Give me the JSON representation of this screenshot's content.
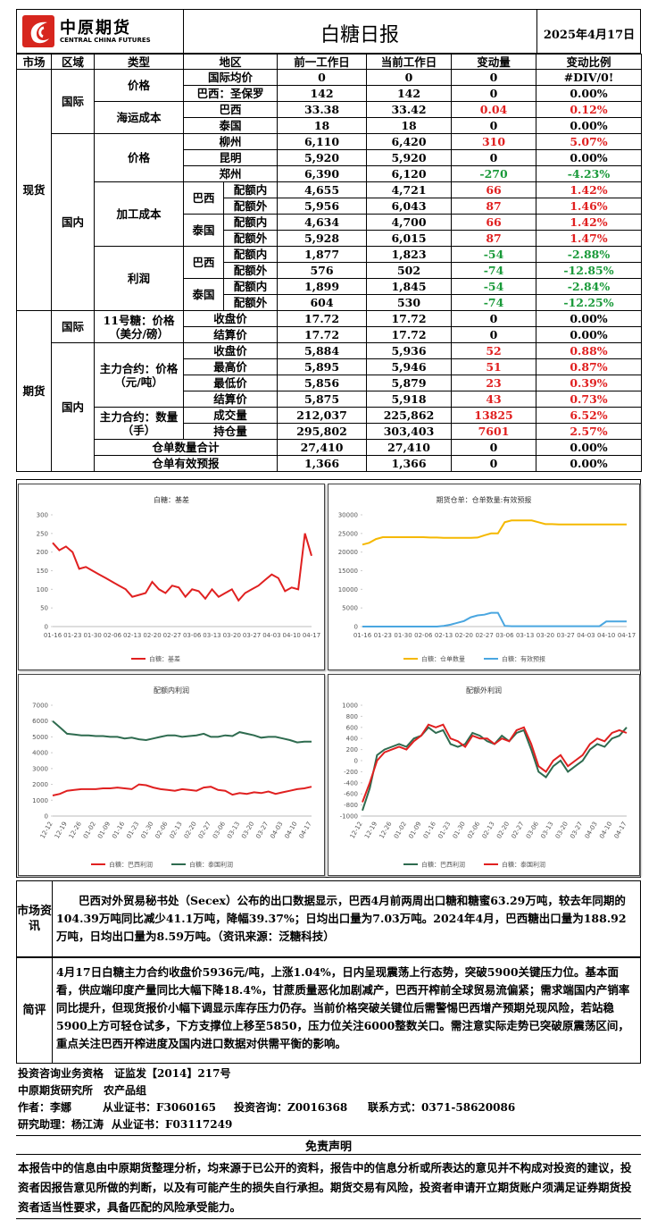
{
  "header": {
    "logo_cn": "中原期货",
    "logo_en": "CENTRAL CHINA FUTURES",
    "title": "白糖日报",
    "date": "2025年4月17日"
  },
  "table": {
    "header": [
      "市场",
      "区域",
      "类型",
      "地区",
      "前一工作日",
      "当前工作日",
      "变动量",
      "变动比例"
    ],
    "markets": [
      "现货",
      "期货"
    ],
    "regions": [
      "国际",
      "国内",
      "国际",
      "国内"
    ],
    "types": [
      "价格",
      "海运成本",
      "价格",
      "加工成本",
      "利润",
      "11号糖：价格（美分/磅）",
      "主力合约：价格（元/吨）",
      "主力合约：数量（手）"
    ],
    "subs": [
      "巴西",
      "泰国",
      "巴西",
      "泰国"
    ],
    "rows": [
      [
        "国际均价",
        "0",
        "0",
        "0",
        "#DIV/0!"
      ],
      [
        "巴西：圣保罗",
        "142",
        "142",
        "0",
        "0.00%"
      ],
      [
        "巴西",
        "33.38",
        "33.42",
        "0.04",
        "0.12%"
      ],
      [
        "泰国",
        "18",
        "18",
        "0",
        "0.00%"
      ],
      [
        "柳州",
        "6,110",
        "6,420",
        "310",
        "5.07%"
      ],
      [
        "昆明",
        "5,920",
        "5,920",
        "0",
        "0.00%"
      ],
      [
        "郑州",
        "6,390",
        "6,120",
        "-270",
        "-4.23%"
      ],
      [
        "配额内",
        "4,655",
        "4,721",
        "66",
        "1.42%"
      ],
      [
        "配额外",
        "5,956",
        "6,043",
        "87",
        "1.46%"
      ],
      [
        "配额内",
        "4,634",
        "4,700",
        "66",
        "1.42%"
      ],
      [
        "配额外",
        "5,928",
        "6,015",
        "87",
        "1.47%"
      ],
      [
        "配额内",
        "1,877",
        "1,823",
        "-54",
        "-2.88%"
      ],
      [
        "配额外",
        "576",
        "502",
        "-74",
        "-12.85%"
      ],
      [
        "配额内",
        "1,899",
        "1,845",
        "-54",
        "-2.84%"
      ],
      [
        "配额外",
        "604",
        "530",
        "-74",
        "-12.25%"
      ],
      [
        "收盘价",
        "17.72",
        "17.72",
        "0",
        "0.00%"
      ],
      [
        "结算价",
        "17.72",
        "17.72",
        "0",
        "0.00%"
      ],
      [
        "收盘价",
        "5,884",
        "5,936",
        "52",
        "0.88%"
      ],
      [
        "最高价",
        "5,895",
        "5,946",
        "51",
        "0.87%"
      ],
      [
        "最低价",
        "5,856",
        "5,879",
        "23",
        "0.39%"
      ],
      [
        "结算价",
        "5,875",
        "5,918",
        "43",
        "0.73%"
      ],
      [
        "成交量",
        "212,037",
        "225,862",
        "13825",
        "6.52%"
      ],
      [
        "持仓量",
        "295,802",
        "303,403",
        "7601",
        "2.57%"
      ],
      [
        "仓单数量合计",
        "27,410",
        "27,410",
        "0",
        "0.00%"
      ],
      [
        "仓单有效预报",
        "1,366",
        "1,366",
        "0",
        "0.00%"
      ]
    ]
  },
  "chart_data": [
    {
      "type": "line",
      "title": "白糖：基差",
      "categories": [
        "01-16",
        null,
        null,
        "01-23",
        null,
        null,
        "01-30",
        null,
        null,
        "02-06",
        null,
        null,
        "02-13",
        null,
        null,
        "02-20",
        null,
        null,
        "02-27",
        null,
        null,
        "03-06",
        null,
        null,
        "03-13",
        null,
        null,
        "03-20",
        null,
        null,
        "03-27",
        null,
        null,
        "04-03",
        null,
        null,
        "04-10",
        null,
        null,
        "04-17"
      ],
      "series": [
        {
          "name": "白糖：基差",
          "color": "#e02020",
          "values": [
            225,
            205,
            215,
            200,
            155,
            160,
            150,
            140,
            130,
            120,
            110,
            100,
            80,
            85,
            90,
            120,
            100,
            90,
            110,
            105,
            80,
            100,
            95,
            75,
            100,
            80,
            90,
            100,
            70,
            90,
            100,
            110,
            125,
            140,
            130,
            95,
            105,
            100,
            250,
            190
          ]
        }
      ],
      "ylim": [
        0,
        300
      ],
      "yticks": [
        0,
        50,
        100,
        150,
        200,
        250,
        300
      ],
      "grid": false
    },
    {
      "type": "line",
      "title": "期货仓单：仓单数量:有效预报",
      "categories": [
        "01-16",
        null,
        null,
        "01-23",
        null,
        null,
        "01-30",
        null,
        null,
        "02-06",
        null,
        null,
        "02-13",
        null,
        null,
        "02-20",
        null,
        null,
        "02-27",
        null,
        null,
        "03-06",
        null,
        null,
        "03-13",
        null,
        null,
        "03-20",
        null,
        null,
        "03-27",
        null,
        null,
        "04-03",
        null,
        null,
        "04-10",
        null,
        null,
        "04-17"
      ],
      "series": [
        {
          "name": "白糖：仓单数量",
          "color": "#f5b800",
          "values": [
            22000,
            22500,
            23500,
            24000,
            24000,
            24000,
            24000,
            24000,
            24000,
            24000,
            23900,
            23900,
            23800,
            23800,
            23800,
            23800,
            23800,
            23900,
            24500,
            25000,
            25000,
            28000,
            28500,
            28500,
            28500,
            28500,
            28000,
            27500,
            27500,
            27400,
            27400,
            27400,
            27410,
            27410,
            27410,
            27410,
            27410,
            27410,
            27410,
            27410
          ]
        },
        {
          "name": "白糖：有效预报",
          "color": "#4aa6e0",
          "values": [
            0,
            0,
            0,
            0,
            0,
            0,
            0,
            0,
            0,
            0,
            0,
            0,
            200,
            500,
            1000,
            1500,
            2500,
            3000,
            3200,
            3700,
            3700,
            200,
            100,
            100,
            100,
            100,
            100,
            100,
            100,
            100,
            100,
            100,
            100,
            100,
            100,
            100,
            1366,
            1366,
            1366,
            1366
          ]
        }
      ],
      "ylim": [
        0,
        30000
      ],
      "yticks": [
        0,
        5000,
        10000,
        15000,
        20000,
        25000,
        30000
      ],
      "grid": false
    },
    {
      "type": "line",
      "title": "配额内利润",
      "categories": [
        "12-12",
        null,
        "12-19",
        null,
        "12-26",
        null,
        "01-02",
        null,
        "01-09",
        null,
        "01-16",
        null,
        "01-23",
        null,
        "01-30",
        null,
        "02-06",
        null,
        "02-13",
        null,
        "02-20",
        null,
        "02-27",
        null,
        "03-06",
        null,
        "03-13",
        null,
        "03-20",
        null,
        "03-27",
        null,
        "04-03",
        null,
        "04-10",
        null,
        "04-17"
      ],
      "series": [
        {
          "name": "白糖：巴西利润",
          "color": "#e02020",
          "values": [
            1300,
            1400,
            1600,
            1650,
            1700,
            1700,
            1700,
            1750,
            1750,
            1800,
            1750,
            1700,
            2000,
            1950,
            1800,
            1700,
            1650,
            1600,
            1700,
            1650,
            1600,
            1800,
            1850,
            1650,
            1600,
            1350,
            1450,
            1400,
            1500,
            1450,
            1550,
            1400,
            1500,
            1600,
            1700,
            1750,
            1850
          ]
        },
        {
          "name": "白糖：泰国利润",
          "color": "#2e6b4f",
          "values": [
            6000,
            5600,
            5200,
            5150,
            5100,
            5100,
            5050,
            5050,
            5000,
            5000,
            4900,
            4950,
            4850,
            4800,
            4900,
            5000,
            5100,
            5100,
            5000,
            5050,
            5100,
            5200,
            5000,
            5000,
            5100,
            5050,
            5300,
            5200,
            5100,
            4950,
            5000,
            5000,
            4900,
            4800,
            4650,
            4700,
            4700
          ]
        }
      ],
      "ylim": [
        0,
        7000
      ],
      "yticks": [
        0,
        1000,
        2000,
        3000,
        4000,
        5000,
        6000,
        7000
      ],
      "grid": false
    },
    {
      "type": "line",
      "title": "配额外利润",
      "categories": [
        "12-12",
        null,
        "12-19",
        null,
        "12-26",
        null,
        "01-02",
        null,
        "01-09",
        null,
        "01-16",
        null,
        "01-23",
        null,
        "01-30",
        null,
        "02-06",
        null,
        "02-13",
        null,
        "02-20",
        null,
        "02-27",
        null,
        "03-06",
        null,
        "03-13",
        null,
        "03-20",
        null,
        "03-27",
        null,
        "04-03",
        null,
        "04-10",
        null,
        "04-17"
      ],
      "series": [
        {
          "name": "白糖：巴西利润",
          "color": "#2e6b4f",
          "values": [
            -900,
            -500,
            100,
            200,
            250,
            300,
            250,
            400,
            450,
            600,
            500,
            550,
            300,
            250,
            300,
            500,
            450,
            350,
            300,
            450,
            350,
            500,
            550,
            200,
            -200,
            -300,
            -100,
            0,
            -200,
            -100,
            0,
            200,
            300,
            250,
            400,
            450,
            600
          ]
        },
        {
          "name": "白糖：泰国利润",
          "color": "#e02020",
          "values": [
            -750,
            -400,
            0,
            150,
            200,
            250,
            200,
            350,
            450,
            650,
            600,
            650,
            400,
            350,
            250,
            450,
            400,
            400,
            300,
            400,
            350,
            550,
            600,
            300,
            -100,
            -200,
            0,
            100,
            -100,
            0,
            100,
            300,
            400,
            350,
            500,
            550,
            500
          ]
        }
      ],
      "ylim": [
        -1000,
        1000
      ],
      "yticks": [
        -1000,
        -800,
        -600,
        -400,
        -200,
        0,
        200,
        400,
        600,
        800,
        1000
      ],
      "grid": false
    }
  ],
  "news": {
    "label": "市场资讯",
    "text": "巴西对外贸易秘书处（Secex）公布的出口数据显示，巴西4月前两周出口糖和糖蜜63.29万吨，较去年同期的104.39万吨同比减少41.1万吨，降幅39.37%；日均出口量为7.03万吨。2024年4月，巴西糖出口量为188.92万吨，日均出口量为8.59万吨。（资讯来源：泛糖科技）"
  },
  "comment": {
    "label": "简评",
    "text": "4月17日白糖主力合约收盘价5936元/吨，上涨1.04%，日内呈现震荡上行态势，突破5900关键压力位。基本面看，供应端印度产量同比大幅下降18.4%，甘蔗质量恶化加剧减产，巴西开榨前全球贸易流偏紧；需求端国内产销率同比提升，但现货报价小幅下调显示库存压力仍存。当前价格突破关键位后需警惕巴西增产预期兑现风险，若站稳5900上方可轻仓试多，下方支撑位上移至5850，压力位关注6000整数关口。需注意实际走势已突破原震荡区间，重点关注巴西开榨进度及国内进口数据对供需平衡的影响。"
  },
  "footer": {
    "qualification": "投资咨询业务资格　证监发【2014】217号",
    "institute": "中原期货研究所　农产品组",
    "author": [
      "作者：李娜",
      "从业证书：F3060165",
      "投资咨询：Z0016368",
      "联系方式：0371-58620086"
    ],
    "assistant": [
      "研究助理：杨江涛",
      "从业证书：F03117249"
    ],
    "disclaimer_title": "免责声明",
    "disclaimer": "本报告中的信息由中原期货整理分析，均来源于已公开的资料，报告中的信息分析或所表达的意见并不构成对投资的建议，投资者因报告意见所做的判断，以及有可能产生的损失自行承担。期货交易有风险，投资者申请开立期货账户须满足证券期货投资者适当性要求，具备匹配的风险承受能力。"
  }
}
